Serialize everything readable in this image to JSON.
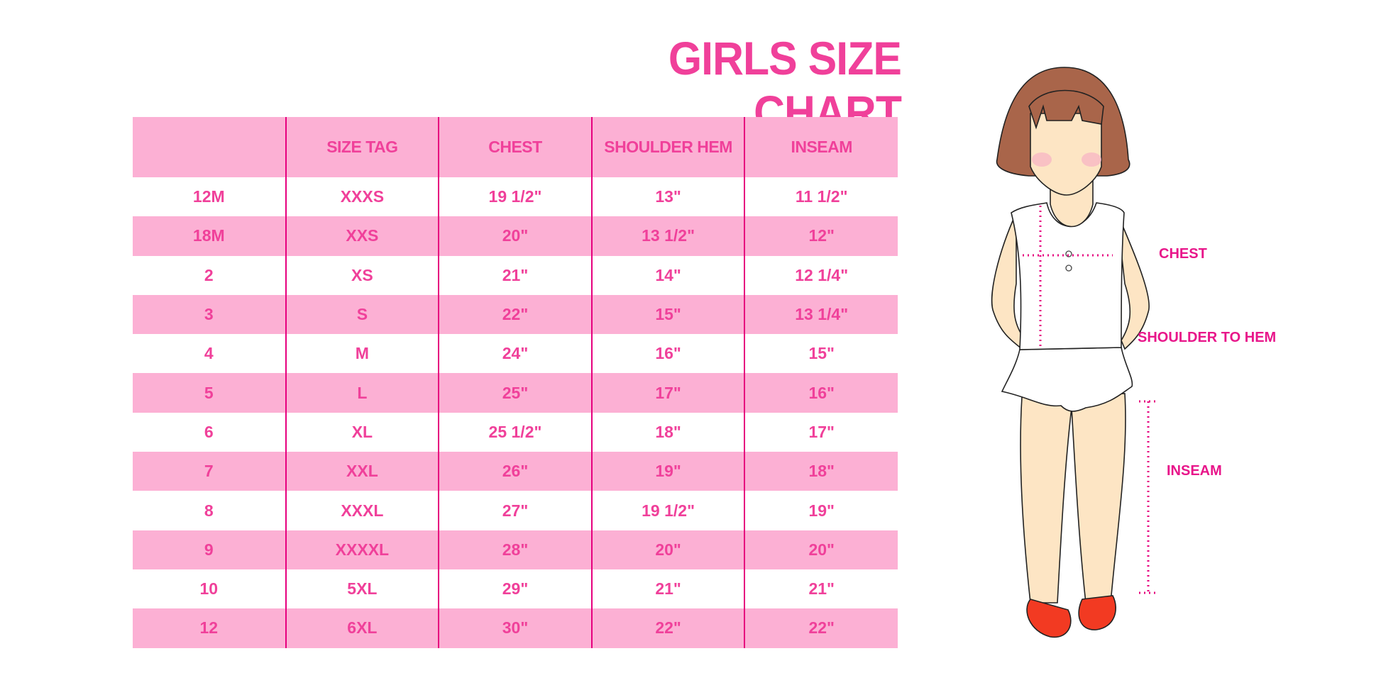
{
  "title": "GIRLS SIZE CHART",
  "table": {
    "headers": [
      "",
      "SIZE TAG",
      "CHEST",
      "SHOULDER HEM",
      "INSEAM"
    ],
    "rows": [
      [
        "12M",
        "XXXS",
        "19 1/2\"",
        "13\"",
        "11 1/2\""
      ],
      [
        "18M",
        "XXS",
        "20\"",
        "13 1/2\"",
        "12\""
      ],
      [
        "2",
        "XS",
        "21\"",
        "14\"",
        "12 1/4\""
      ],
      [
        "3",
        "S",
        "22\"",
        "15\"",
        "13 1/4\""
      ],
      [
        "4",
        "M",
        "24\"",
        "16\"",
        "15\""
      ],
      [
        "5",
        "L",
        "25\"",
        "17\"",
        "16\""
      ],
      [
        "6",
        "XL",
        "25 1/2\"",
        "18\"",
        "17\""
      ],
      [
        "7",
        "XXL",
        "26\"",
        "19\"",
        "18\""
      ],
      [
        "8",
        "XXXL",
        "27\"",
        "19 1/2\"",
        "19\""
      ],
      [
        "9",
        "XXXXL",
        "28\"",
        "20\"",
        "20\""
      ],
      [
        "10",
        "5XL",
        "29\"",
        "21\"",
        "21\""
      ],
      [
        "12",
        "6XL",
        "30\"",
        "22\"",
        "22\""
      ]
    ]
  },
  "figure": {
    "labels": {
      "chest": "CHEST",
      "shoulder_to_hem": "SHOULDER TO HEM",
      "inseam": "INSEAM"
    }
  },
  "colors": {
    "accent": "#f0409a",
    "header_bg": "#fcb0d4",
    "divider": "#e6007e"
  }
}
